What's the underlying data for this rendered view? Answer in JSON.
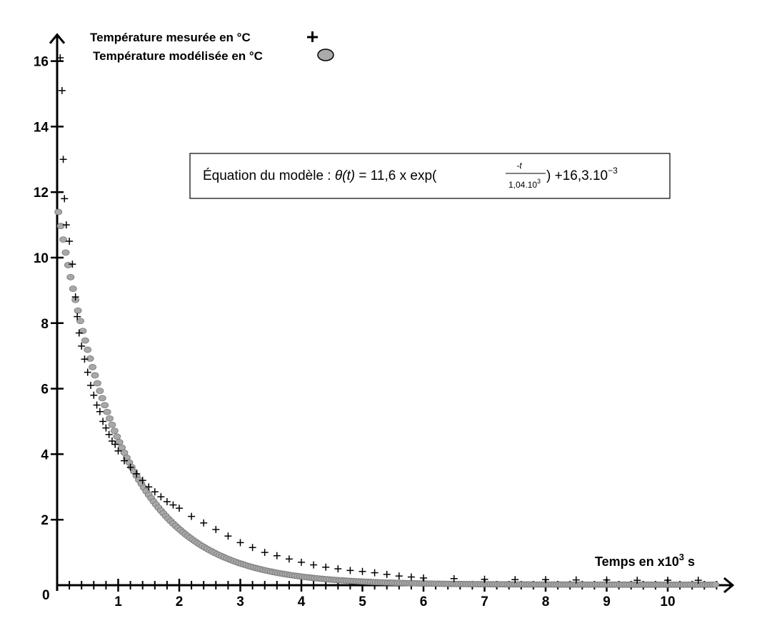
{
  "chart_data": {
    "type": "scatter",
    "title": "",
    "xlabel": "Temps en x10",
    "xlabel_sup": "3",
    "xlabel_unit": " s",
    "ylabel": "",
    "origin_label": "0",
    "xlim": [
      0,
      10.9
    ],
    "ylim": [
      0,
      16.5
    ],
    "x_ticks": [
      1,
      2,
      3,
      4,
      5,
      6,
      7,
      8,
      9,
      10
    ],
    "y_ticks": [
      2,
      4,
      6,
      8,
      10,
      12,
      14,
      16
    ],
    "grid": false,
    "legend_position": "top-left",
    "legend": [
      {
        "label": "Température mesurée en °C",
        "marker": "+"
      },
      {
        "label": "Température modélisée en °C",
        "marker": "ellipse"
      }
    ],
    "equation": {
      "prefix": "Équation du modèle : ",
      "func": "θ(t)",
      "middle": " = 11,6 x exp(",
      "numerator": "-t",
      "denominator": "1,04.10",
      "denominator_sup": "3",
      "suffix": ") +16,3.10",
      "suffix_sup": "−3"
    },
    "series": [
      {
        "name": "Température mesurée en °C",
        "marker": "plus",
        "color": "#000000",
        "points": [
          [
            0.05,
            16.1
          ],
          [
            0.08,
            15.1
          ],
          [
            0.1,
            13.0
          ],
          [
            0.12,
            11.8
          ],
          [
            0.15,
            11.0
          ],
          [
            0.2,
            10.5
          ],
          [
            0.25,
            9.8
          ],
          [
            0.3,
            8.8
          ],
          [
            0.33,
            8.2
          ],
          [
            0.36,
            7.7
          ],
          [
            0.4,
            7.3
          ],
          [
            0.45,
            6.9
          ],
          [
            0.5,
            6.5
          ],
          [
            0.55,
            6.1
          ],
          [
            0.6,
            5.8
          ],
          [
            0.65,
            5.5
          ],
          [
            0.7,
            5.3
          ],
          [
            0.75,
            5.0
          ],
          [
            0.8,
            4.8
          ],
          [
            0.85,
            4.6
          ],
          [
            0.9,
            4.4
          ],
          [
            0.95,
            4.3
          ],
          [
            1.0,
            4.1
          ],
          [
            1.1,
            3.8
          ],
          [
            1.2,
            3.6
          ],
          [
            1.3,
            3.4
          ],
          [
            1.4,
            3.2
          ],
          [
            1.5,
            3.0
          ],
          [
            1.6,
            2.85
          ],
          [
            1.7,
            2.7
          ],
          [
            1.8,
            2.55
          ],
          [
            1.9,
            2.45
          ],
          [
            2.0,
            2.35
          ],
          [
            2.2,
            2.1
          ],
          [
            2.4,
            1.9
          ],
          [
            2.6,
            1.7
          ],
          [
            2.8,
            1.5
          ],
          [
            3.0,
            1.3
          ],
          [
            3.2,
            1.15
          ],
          [
            3.4,
            1.0
          ],
          [
            3.6,
            0.9
          ],
          [
            3.8,
            0.8
          ],
          [
            4.0,
            0.7
          ],
          [
            4.2,
            0.62
          ],
          [
            4.4,
            0.55
          ],
          [
            4.6,
            0.5
          ],
          [
            4.8,
            0.45
          ],
          [
            5.0,
            0.42
          ],
          [
            5.2,
            0.38
          ],
          [
            5.4,
            0.33
          ],
          [
            5.6,
            0.28
          ],
          [
            5.8,
            0.25
          ],
          [
            6.0,
            0.22
          ],
          [
            6.5,
            0.2
          ],
          [
            7.0,
            0.18
          ],
          [
            7.5,
            0.17
          ],
          [
            8.0,
            0.17
          ],
          [
            8.5,
            0.16
          ],
          [
            9.0,
            0.16
          ],
          [
            9.5,
            0.15
          ],
          [
            10.0,
            0.15
          ],
          [
            10.5,
            0.15
          ]
        ]
      },
      {
        "name": "Température modélisée en °C",
        "marker": "ellipse",
        "color": "#999999",
        "model": {
          "a": 11.6,
          "tau": 1.04,
          "c": 0.0163
        },
        "x_start": 0.02,
        "x_end": 10.8,
        "x_step": 0.04
      }
    ]
  }
}
